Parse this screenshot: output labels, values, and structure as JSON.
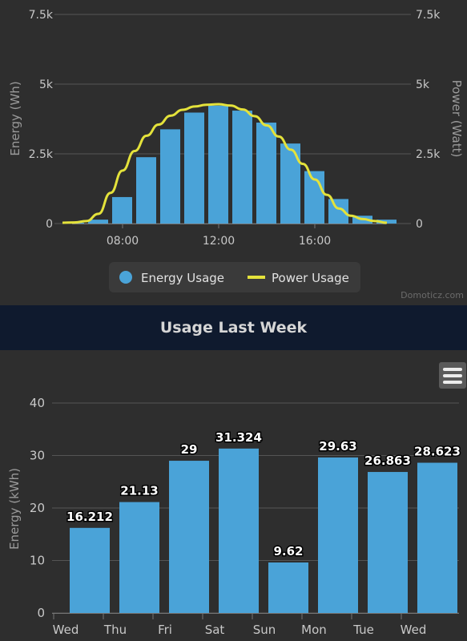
{
  "credits": "Domoticz.com",
  "week_title": "Usage Last Week",
  "menu_icon": "hamburger-menu-icon",
  "colors": {
    "bar": "#4aa3d8",
    "line": "#e4e23b",
    "grid": "#555555",
    "text": "#c8c8c8",
    "header_bg": "#0f1a2e"
  },
  "chart_data": [
    {
      "type": "bar",
      "title": "",
      "xlabel": "",
      "ylabel": "Energy (Wh)",
      "y2label": "Power (Watt)",
      "ylim": [
        0,
        7500
      ],
      "y_ticks": [
        "0",
        "2.5k",
        "5k",
        "7.5k"
      ],
      "y2_ticks": [
        "0",
        "2.5k",
        "5k",
        "7.5k"
      ],
      "x_tick_labels": [
        "08:00",
        "12:00",
        "16:00"
      ],
      "x_tick_hours": [
        8,
        12,
        16
      ],
      "legend": [
        "Energy Usage",
        "Power Usage"
      ],
      "legend_position": "bottom-center",
      "series": [
        {
          "name": "Energy Usage",
          "type": "bar",
          "hours": [
            6,
            7,
            8,
            9,
            10,
            11,
            12,
            13,
            14,
            15,
            16,
            17,
            18,
            19
          ],
          "values": [
            30,
            140,
            950,
            2380,
            3380,
            3980,
            4230,
            4050,
            3620,
            2870,
            1880,
            880,
            280,
            140
          ]
        },
        {
          "name": "Power Usage",
          "type": "line",
          "hours": [
            5.5,
            6,
            6.5,
            7,
            7.5,
            8,
            8.5,
            9,
            9.5,
            10,
            10.5,
            11,
            11.5,
            12,
            12.5,
            13,
            13.5,
            14,
            14.5,
            15,
            15.5,
            16,
            16.5,
            17,
            17.5,
            18,
            18.5,
            19
          ],
          "values": [
            30,
            40,
            90,
            350,
            1100,
            1900,
            2600,
            3150,
            3550,
            3870,
            4080,
            4200,
            4260,
            4280,
            4230,
            4090,
            3850,
            3520,
            3120,
            2650,
            2140,
            1580,
            1030,
            540,
            280,
            160,
            90,
            30
          ]
        }
      ]
    },
    {
      "type": "bar",
      "title": "Usage Last Week",
      "xlabel": "",
      "ylabel": "Energy (kWh)",
      "ylim": [
        0,
        40
      ],
      "y_ticks": [
        0,
        10,
        20,
        30,
        40
      ],
      "categories": [
        "Wed",
        "Thu",
        "Fri",
        "Sat",
        "Sun",
        "Mon",
        "Tue",
        "Wed"
      ],
      "series": [
        {
          "values": [
            16.212,
            21.13,
            29,
            31.324,
            9.62,
            29.63,
            26.863,
            28.623
          ],
          "labels": [
            "16.212",
            "21.13",
            "29",
            "31.324",
            "9.62",
            "29.63",
            "26.863",
            "28.623"
          ]
        }
      ]
    }
  ]
}
